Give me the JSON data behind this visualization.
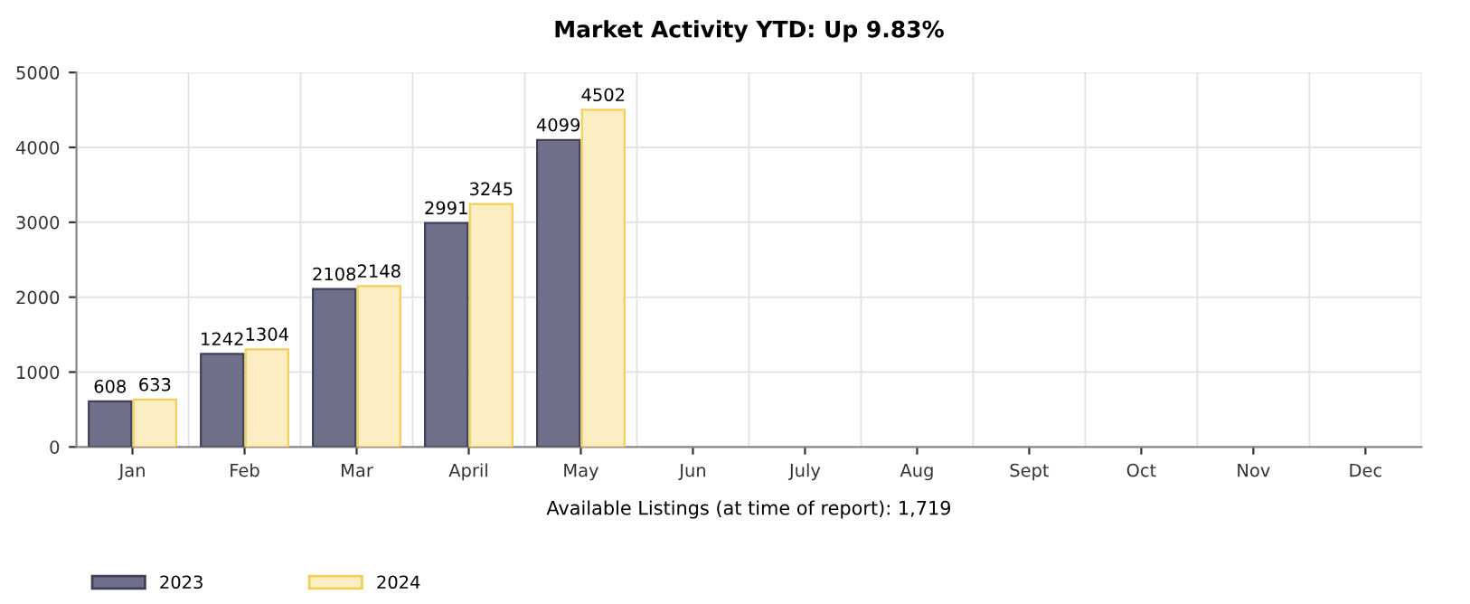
{
  "chart_data": {
    "type": "bar",
    "title": "Market Activity YTD: Up 9.83%",
    "xlabel": "Available Listings (at time of report): 1,719",
    "categories": [
      "Jan",
      "Feb",
      "Mar",
      "April",
      "May",
      "Jun",
      "July",
      "Aug",
      "Sept",
      "Oct",
      "Nov",
      "Dec"
    ],
    "series": [
      {
        "name": "2023",
        "color": "#6e7089",
        "values": [
          608,
          1242,
          2108,
          2991,
          4099,
          null,
          null,
          null,
          null,
          null,
          null,
          null
        ]
      },
      {
        "name": "2024",
        "color": "#fdedc2",
        "values": [
          633,
          1304,
          2148,
          3245,
          4502,
          null,
          null,
          null,
          null,
          null,
          null,
          null
        ]
      }
    ],
    "ylim": [
      0,
      5000
    ],
    "yticks": [
      0,
      1000,
      2000,
      3000,
      4000,
      5000
    ],
    "grid": true,
    "legend": "bottom",
    "data_labels": true
  }
}
